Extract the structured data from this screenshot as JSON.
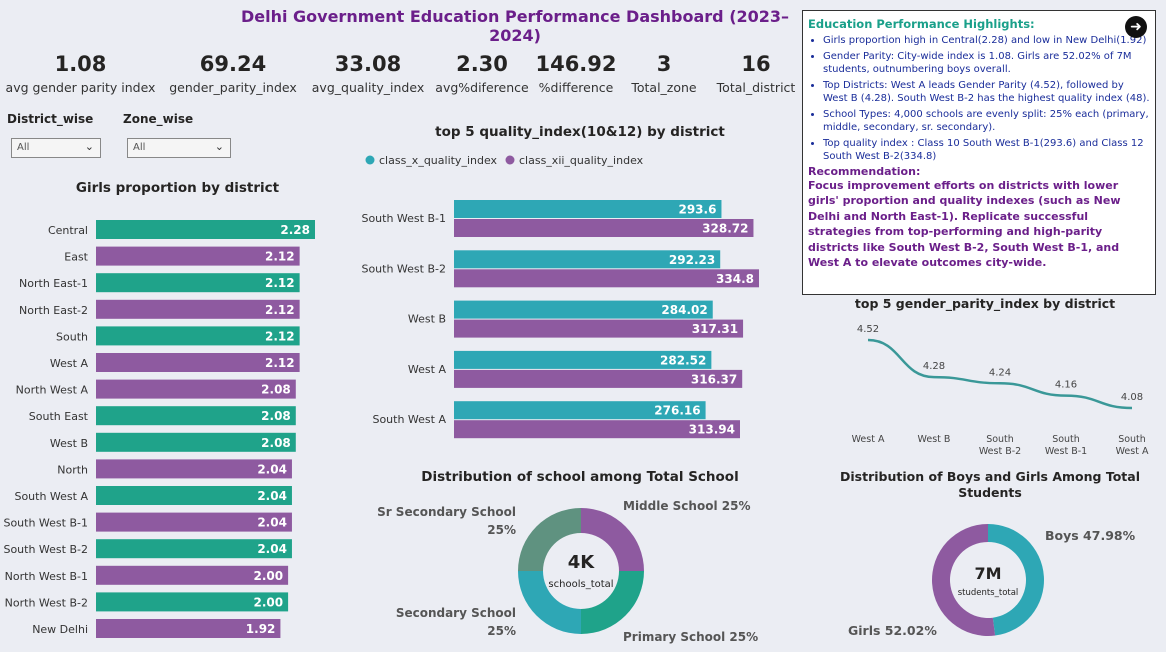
{
  "header": {
    "title": "Delhi Government Education Performance Dashboard (2023–2024)"
  },
  "kpis": [
    {
      "value": "1.08",
      "label": "avg gender parity index"
    },
    {
      "value": "69.24",
      "label": "gender_parity_index"
    },
    {
      "value": "33.08",
      "label": "avg_quality_index"
    },
    {
      "value": "2.30",
      "label": "avg%diference"
    },
    {
      "value": "146.92",
      "label": "%difference"
    },
    {
      "value": "3",
      "label": "Total_zone"
    },
    {
      "value": "16",
      "label": "Total_district"
    }
  ],
  "slicers": {
    "district": {
      "label": "District_wise",
      "value": "All"
    },
    "zone": {
      "label": "Zone_wise",
      "value": "All"
    }
  },
  "colors": {
    "teal": "#1fa38a",
    "purple": "#8e5aa0",
    "cyan": "#2ea7b5",
    "line": "#3a9898"
  },
  "chart_data": [
    {
      "type": "bar",
      "title": "Girls proportion by district",
      "orientation": "horizontal",
      "categories": [
        "Central",
        "East",
        "North East-1",
        "North East-2",
        "South",
        "West A",
        "North West A",
        "South East",
        "West B",
        "North",
        "South West A",
        "South West B-1",
        "South West B-2",
        "North West B-1",
        "North West B-2",
        "New Delhi"
      ],
      "values": [
        2.28,
        2.12,
        2.12,
        2.12,
        2.12,
        2.12,
        2.08,
        2.08,
        2.08,
        2.04,
        2.04,
        2.04,
        2.04,
        2.0,
        2.0,
        1.92
      ],
      "value_labels": [
        "2.28",
        "2.12",
        "2.12",
        "2.12",
        "2.12",
        "2.12",
        "2.08",
        "2.08",
        "2.08",
        "2.04",
        "2.04",
        "2.04",
        "2.04",
        "2.00",
        "2.00",
        "1.92"
      ],
      "bar_colors": [
        "teal",
        "purple",
        "teal",
        "purple",
        "teal",
        "purple",
        "purple",
        "teal",
        "teal",
        "purple",
        "teal",
        "purple",
        "teal",
        "purple",
        "teal",
        "purple"
      ]
    },
    {
      "type": "bar",
      "title": "top 5 quality_index(10&12) by district",
      "orientation": "horizontal",
      "categories": [
        "South West B-1",
        "South West B-2",
        "West B",
        "West A",
        "South West A"
      ],
      "series": [
        {
          "name": "class_x_quality_index",
          "values": [
            293.6,
            292.23,
            284.02,
            282.52,
            276.16
          ],
          "labels": [
            "293.6",
            "292.23",
            "284.02",
            "282.52",
            "276.16"
          ],
          "color": "#2ea7b5"
        },
        {
          "name": "class_xii_quality_index",
          "values": [
            328.72,
            334.8,
            317.31,
            316.37,
            313.94
          ],
          "labels": [
            "328.72",
            "334.8",
            "317.31",
            "316.37",
            "313.94"
          ],
          "color": "#8e5aa0"
        }
      ],
      "legend": "top-left"
    },
    {
      "type": "line",
      "title": "top 5 gender_parity_index by district",
      "x": [
        "West A",
        "West B",
        "South West B-2",
        "South West B-1",
        "South West A"
      ],
      "x_labels": [
        [
          "West A"
        ],
        [
          "West B"
        ],
        [
          "South",
          "West B-2"
        ],
        [
          "South",
          "West B-1"
        ],
        [
          "South",
          "West A"
        ]
      ],
      "values": [
        4.52,
        4.28,
        4.24,
        4.16,
        4.08
      ],
      "labels": [
        "4.52",
        "4.28",
        "4.24",
        "4.16",
        "4.08"
      ]
    },
    {
      "type": "pie",
      "donut": true,
      "title": "Distribution of school among Total School",
      "center_value": "4K",
      "center_label": "schools_total",
      "slices": [
        {
          "name": "Middle School",
          "value": 25,
          "pct_label": "25%",
          "color": "#8e5aa0"
        },
        {
          "name": "Primary School",
          "value": 25,
          "pct_label": "25%",
          "color": "#1fa38a"
        },
        {
          "name": "Secondary School",
          "value": 25,
          "pct_label": "25%",
          "color": "#2ea7b5"
        },
        {
          "name": "Sr Secondary School",
          "value": 25,
          "pct_label": "25%",
          "color": "#5f9280"
        }
      ]
    },
    {
      "type": "pie",
      "donut": true,
      "title": "Distribution of Boys and Girls Among Total Students",
      "center_value": "7M",
      "center_label": "students_total",
      "slices": [
        {
          "name": "Boys",
          "value": 47.98,
          "pct_label": "47.98%",
          "color": "#2ea7b5"
        },
        {
          "name": "Girls",
          "value": 52.02,
          "pct_label": "52.02%",
          "color": "#8e5aa0"
        }
      ]
    }
  ],
  "highlights": {
    "title": "Education Performance Highlights:",
    "items": [
      "Girls proportion high in Central(2.28) and low in New Delhi(1.92)",
      "Gender Parity: City-wide index is 1.08. Girls are 52.02% of 7M students, outnumbering boys overall.",
      "Top Districts: West A leads Gender Parity (4.52), followed by West B (4.28). South West B-2 has the highest quality index (48).",
      "School Types: 4,000 schools are evenly split: 25% each (primary, middle, secondary, sr. secondary).",
      "Top quality index : Class 10 South West B-1(293.6) and Class 12 South West B-2(334.8)"
    ],
    "rec_title": "Recommendation:",
    "rec_text": "Focus improvement efforts on districts with lower girls' proportion and quality indexes (such as New Delhi and North East-1). Replicate successful strategies from top-performing and high-parity districts like South West B-2, South West B-1, and West A to elevate outcomes city-wide.",
    "nav_icon": "arrow-right-circle-icon"
  }
}
